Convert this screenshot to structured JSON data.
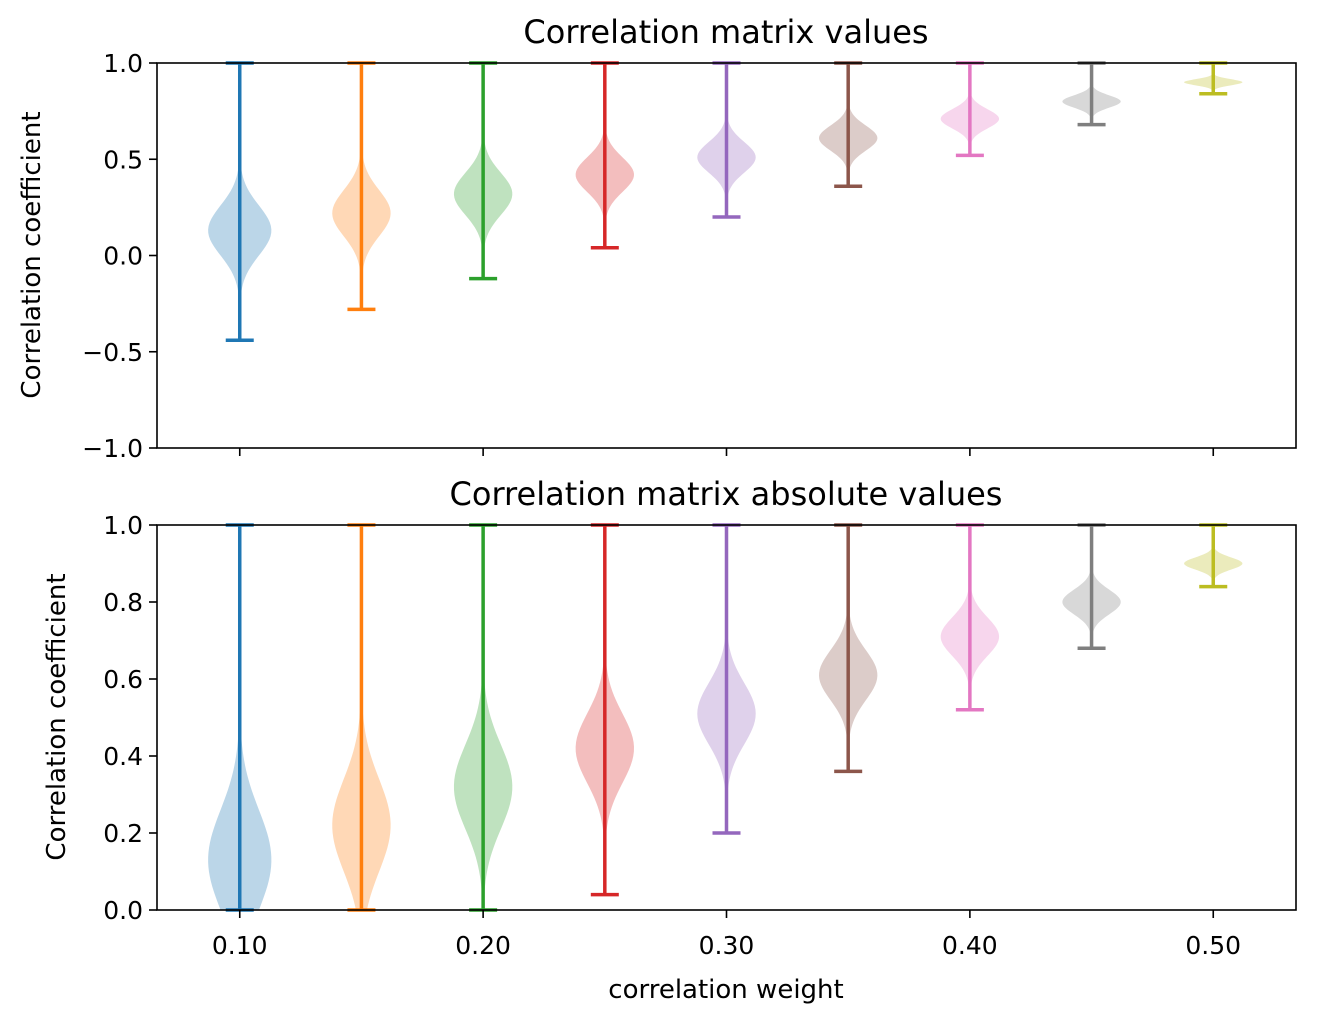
{
  "chart_data": [
    {
      "type": "violin",
      "title": "Correlation matrix values",
      "ylabel": "Correlation coefficient",
      "xlabel": "",
      "ylim": [
        -1.0,
        1.0
      ],
      "yticks": [
        {
          "value": -1.0,
          "label": "−1.0"
        },
        {
          "value": -0.5,
          "label": "−0.5"
        },
        {
          "value": 0.0,
          "label": "0.0"
        },
        {
          "value": 0.5,
          "label": "0.5"
        },
        {
          "value": 1.0,
          "label": "1.0"
        }
      ],
      "grid": false,
      "series": [
        {
          "x": 0.1,
          "min": -0.44,
          "max": 1.0,
          "mode": 0.13,
          "half_width": 0.013,
          "spread": 0.13,
          "color": "#1f77b4"
        },
        {
          "x": 0.15,
          "min": -0.28,
          "max": 1.0,
          "mode": 0.22,
          "half_width": 0.012,
          "spread": 0.12,
          "color": "#ff7f0e"
        },
        {
          "x": 0.2,
          "min": -0.12,
          "max": 1.0,
          "mode": 0.32,
          "half_width": 0.012,
          "spread": 0.11,
          "color": "#2ca02c"
        },
        {
          "x": 0.25,
          "min": 0.04,
          "max": 1.0,
          "mode": 0.42,
          "half_width": 0.012,
          "spread": 0.09,
          "color": "#d62728"
        },
        {
          "x": 0.3,
          "min": 0.2,
          "max": 1.0,
          "mode": 0.51,
          "half_width": 0.012,
          "spread": 0.08,
          "color": "#9467bd"
        },
        {
          "x": 0.35,
          "min": 0.36,
          "max": 1.0,
          "mode": 0.61,
          "half_width": 0.012,
          "spread": 0.065,
          "color": "#8c564b"
        },
        {
          "x": 0.4,
          "min": 0.52,
          "max": 1.0,
          "mode": 0.71,
          "half_width": 0.012,
          "spread": 0.05,
          "color": "#e377c2"
        },
        {
          "x": 0.45,
          "min": 0.68,
          "max": 1.0,
          "mode": 0.8,
          "half_width": 0.012,
          "spread": 0.032,
          "color": "#7f7f7f"
        },
        {
          "x": 0.5,
          "min": 0.84,
          "max": 1.0,
          "mode": 0.9,
          "half_width": 0.012,
          "spread": 0.016,
          "color": "#bcbd22"
        }
      ]
    },
    {
      "type": "violin",
      "title": "Correlation matrix absolute values",
      "ylabel": "Correlation coefficient",
      "xlabel": "correlation weight",
      "ylim": [
        0.0,
        1.0
      ],
      "xlim": [
        0.066,
        0.534
      ],
      "xticks": [
        {
          "value": 0.1,
          "label": "0.10"
        },
        {
          "value": 0.2,
          "label": "0.20"
        },
        {
          "value": 0.3,
          "label": "0.30"
        },
        {
          "value": 0.4,
          "label": "0.40"
        },
        {
          "value": 0.5,
          "label": "0.50"
        }
      ],
      "yticks": [
        {
          "value": 0.0,
          "label": "0.0"
        },
        {
          "value": 0.2,
          "label": "0.2"
        },
        {
          "value": 0.4,
          "label": "0.4"
        },
        {
          "value": 0.6,
          "label": "0.6"
        },
        {
          "value": 0.8,
          "label": "0.8"
        },
        {
          "value": 1.0,
          "label": "1.0"
        }
      ],
      "grid": false,
      "series": [
        {
          "x": 0.1,
          "min": 0.0,
          "max": 1.0,
          "mode": 0.13,
          "half_width": 0.013,
          "spread": 0.13,
          "color": "#1f77b4"
        },
        {
          "x": 0.15,
          "min": 0.0,
          "max": 1.0,
          "mode": 0.22,
          "half_width": 0.012,
          "spread": 0.12,
          "color": "#ff7f0e"
        },
        {
          "x": 0.2,
          "min": 0.0,
          "max": 1.0,
          "mode": 0.32,
          "half_width": 0.012,
          "spread": 0.11,
          "color": "#2ca02c"
        },
        {
          "x": 0.25,
          "min": 0.04,
          "max": 1.0,
          "mode": 0.42,
          "half_width": 0.012,
          "spread": 0.09,
          "color": "#d62728"
        },
        {
          "x": 0.3,
          "min": 0.2,
          "max": 1.0,
          "mode": 0.51,
          "half_width": 0.012,
          "spread": 0.08,
          "color": "#9467bd"
        },
        {
          "x": 0.35,
          "min": 0.36,
          "max": 1.0,
          "mode": 0.61,
          "half_width": 0.012,
          "spread": 0.065,
          "color": "#8c564b"
        },
        {
          "x": 0.4,
          "min": 0.52,
          "max": 1.0,
          "mode": 0.71,
          "half_width": 0.012,
          "spread": 0.05,
          "color": "#e377c2"
        },
        {
          "x": 0.45,
          "min": 0.68,
          "max": 1.0,
          "mode": 0.8,
          "half_width": 0.012,
          "spread": 0.032,
          "color": "#7f7f7f"
        },
        {
          "x": 0.5,
          "min": 0.84,
          "max": 1.0,
          "mode": 0.9,
          "half_width": 0.012,
          "spread": 0.016,
          "color": "#bcbd22"
        }
      ]
    }
  ]
}
